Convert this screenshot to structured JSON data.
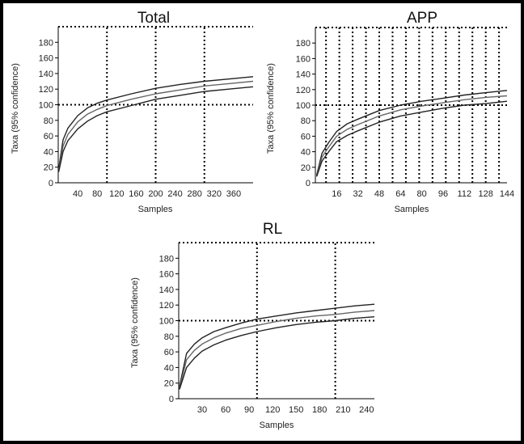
{
  "chart_data": [
    {
      "type": "line",
      "title": "Total",
      "xlabel": "Samples",
      "ylabel": "Taxa (95% confidence)",
      "xlim": [
        0,
        400
      ],
      "ylim": [
        0,
        200
      ],
      "xticks": [
        40,
        80,
        120,
        160,
        200,
        240,
        280,
        320,
        360
      ],
      "yticks": [
        0,
        20,
        40,
        60,
        80,
        100,
        120,
        140,
        160,
        180
      ],
      "ref_vlines": [
        100,
        200,
        300
      ],
      "ref_hlines": [
        100,
        200
      ],
      "x": [
        1,
        10,
        20,
        40,
        60,
        80,
        100,
        150,
        200,
        250,
        300,
        350,
        400
      ],
      "series": [
        {
          "values": [
            18,
            55,
            70,
            86,
            96,
            102,
            106,
            114,
            121,
            126,
            130,
            133,
            136
          ],
          "color": "#222222"
        },
        {
          "values": [
            16,
            47,
            62,
            78,
            88,
            94,
            99,
            107,
            114,
            119,
            124,
            127,
            130
          ],
          "color": "#666666"
        },
        {
          "values": [
            14,
            40,
            54,
            69,
            79,
            86,
            91,
            99,
            107,
            112,
            117,
            120,
            123
          ],
          "color": "#222222"
        }
      ]
    },
    {
      "type": "line",
      "title": "APP",
      "xlabel": "Samples",
      "ylabel": "Taxa (95% confidence)",
      "xlim": [
        0,
        144
      ],
      "ylim": [
        0,
        200
      ],
      "xticks": [
        16,
        32,
        48,
        64,
        80,
        96,
        112,
        128,
        144
      ],
      "yticks": [
        0,
        20,
        40,
        60,
        80,
        100,
        120,
        140,
        160,
        180
      ],
      "ref_vlines": [
        8,
        18,
        28,
        38,
        48,
        58,
        68,
        78,
        88,
        98,
        108,
        118,
        128,
        138
      ],
      "ref_hlines": [
        100,
        200
      ],
      "x": [
        1,
        5,
        10,
        16,
        24,
        32,
        48,
        64,
        80,
        96,
        112,
        128,
        144
      ],
      "series": [
        {
          "values": [
            10,
            38,
            52,
            66,
            76,
            82,
            93,
            100,
            105,
            109,
            113,
            116,
            119
          ],
          "color": "#222222"
        },
        {
          "values": [
            9,
            33,
            46,
            60,
            69,
            75,
            86,
            94,
            99,
            103,
            107,
            110,
            112
          ],
          "color": "#666666"
        },
        {
          "values": [
            8,
            28,
            40,
            53,
            61,
            67,
            78,
            86,
            91,
            96,
            100,
            102,
            105
          ],
          "color": "#222222"
        }
      ]
    },
    {
      "type": "line",
      "title": "RL",
      "xlabel": "Samples",
      "ylabel": "Taxa (95% confidence)",
      "xlim": [
        0,
        250
      ],
      "ylim": [
        0,
        200
      ],
      "xticks": [
        30,
        60,
        90,
        120,
        150,
        180,
        210,
        240
      ],
      "yticks": [
        0,
        20,
        40,
        60,
        80,
        100,
        120,
        140,
        160,
        180
      ],
      "ref_vlines": [
        100,
        200
      ],
      "ref_hlines": [
        100,
        200
      ],
      "x": [
        1,
        10,
        20,
        30,
        45,
        60,
        80,
        100,
        125,
        150,
        175,
        200,
        225,
        250
      ],
      "series": [
        {
          "values": [
            16,
            58,
            70,
            78,
            86,
            91,
            97,
            102,
            106,
            110,
            113,
            116,
            119,
            121
          ],
          "color": "#222222"
        },
        {
          "values": [
            14,
            50,
            62,
            70,
            78,
            84,
            90,
            94,
            99,
            103,
            106,
            108,
            111,
            113
          ],
          "color": "#666666"
        },
        {
          "values": [
            12,
            40,
            52,
            61,
            69,
            75,
            81,
            86,
            91,
            95,
            98,
            100,
            103,
            105
          ],
          "color": "#222222"
        }
      ]
    }
  ]
}
